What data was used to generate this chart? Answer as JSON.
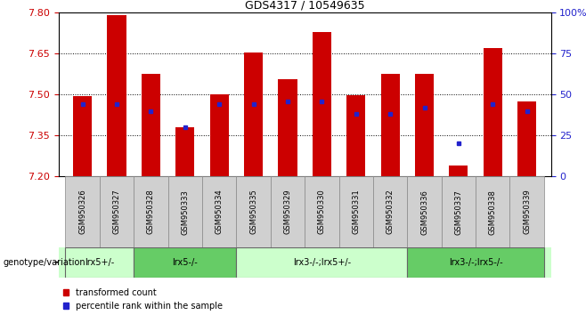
{
  "title": "GDS4317 / 10549635",
  "samples": [
    "GSM950326",
    "GSM950327",
    "GSM950328",
    "GSM950333",
    "GSM950334",
    "GSM950335",
    "GSM950329",
    "GSM950330",
    "GSM950331",
    "GSM950332",
    "GSM950336",
    "GSM950337",
    "GSM950338",
    "GSM950339"
  ],
  "bar_values": [
    7.495,
    7.79,
    7.575,
    7.38,
    7.5,
    7.655,
    7.555,
    7.73,
    7.497,
    7.575,
    7.575,
    7.24,
    7.67,
    7.475
  ],
  "percentile_values": [
    44,
    44,
    40,
    30,
    44,
    44,
    46,
    46,
    38,
    38,
    42,
    20,
    44,
    40
  ],
  "ymin": 7.2,
  "ymax": 7.8,
  "yright_min": 0,
  "yright_max": 100,
  "yticks_left": [
    7.2,
    7.35,
    7.5,
    7.65,
    7.8
  ],
  "yticks_right": [
    0,
    25,
    50,
    75,
    100
  ],
  "bar_color": "#cc0000",
  "blue_color": "#2222cc",
  "genotype_groups": [
    {
      "label": "lrx5+/-",
      "start": 0,
      "end": 1,
      "color": "#ccffcc"
    },
    {
      "label": "lrx5-/-",
      "start": 2,
      "end": 4,
      "color": "#66cc66"
    },
    {
      "label": "lrx3-/-;lrx5+/-",
      "start": 5,
      "end": 9,
      "color": "#ccffcc"
    },
    {
      "label": "lrx3-/-;lrx5-/-",
      "start": 10,
      "end": 13,
      "color": "#66cc66"
    }
  ],
  "legend_red_label": "transformed count",
  "legend_blue_label": "percentile rank within the sample",
  "xlabel_label": "genotype/variation",
  "background_color": "#ffffff",
  "plot_bg_color": "#ffffff",
  "tick_color_left": "#cc0000",
  "tick_color_right": "#2222cc",
  "grid_color": "#000000",
  "bar_width": 0.55,
  "sample_bg_color": "#d0d0d0"
}
